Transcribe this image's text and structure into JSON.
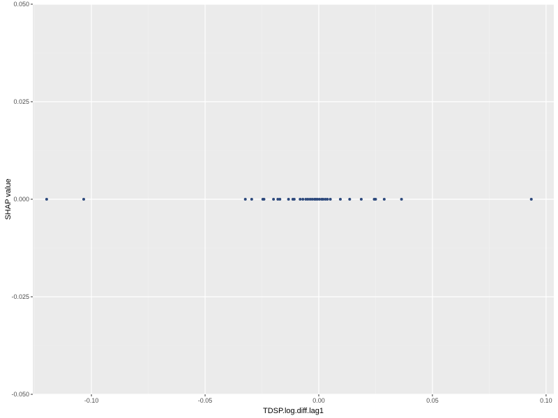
{
  "chart_data": {
    "type": "scatter",
    "xlabel": "TDSP.log.diff.lag1",
    "ylabel": "SHAP value",
    "xlim": [
      -0.1258,
      0.1034
    ],
    "ylim": [
      -0.05,
      0.05
    ],
    "x_ticks": [
      {
        "value": -0.1,
        "label": "-0.10"
      },
      {
        "value": -0.05,
        "label": "-0.05"
      },
      {
        "value": 0.0,
        "label": "0.00"
      },
      {
        "value": 0.05,
        "label": "0.05"
      },
      {
        "value": 0.1,
        "label": "0.10"
      }
    ],
    "y_ticks": [
      {
        "value": 0.05,
        "label": "0.050"
      },
      {
        "value": 0.025,
        "label": "0.025"
      },
      {
        "value": 0.0,
        "label": "0.000"
      },
      {
        "value": -0.025,
        "label": "-0.025"
      },
      {
        "value": -0.05,
        "label": "-0.050"
      }
    ],
    "grid": true,
    "series": [
      {
        "point_color": "#2e4a7d",
        "x": [
          -0.1197,
          -0.1034,
          -0.0323,
          -0.0295,
          -0.0246,
          -0.0241,
          -0.0199,
          -0.018,
          -0.0171,
          -0.0133,
          -0.0114,
          -0.0108,
          -0.0082,
          -0.007,
          -0.0057,
          -0.0048,
          -0.0038,
          -0.0029,
          -0.0019,
          -0.0013,
          -0.0006,
          0.0003,
          0.0013,
          0.0019,
          0.0029,
          0.0038,
          0.0051,
          0.0095,
          0.0136,
          0.0187,
          0.0244,
          0.025,
          0.0288,
          0.0364,
          0.0935
        ],
        "y": [
          0,
          0,
          0,
          0,
          0,
          0,
          0,
          0,
          0,
          0,
          0,
          0,
          0,
          0,
          0,
          0,
          0,
          0,
          0,
          0,
          0,
          0,
          0,
          0,
          0,
          0,
          0,
          0,
          0,
          0,
          0,
          0,
          0,
          0,
          0
        ]
      }
    ]
  }
}
